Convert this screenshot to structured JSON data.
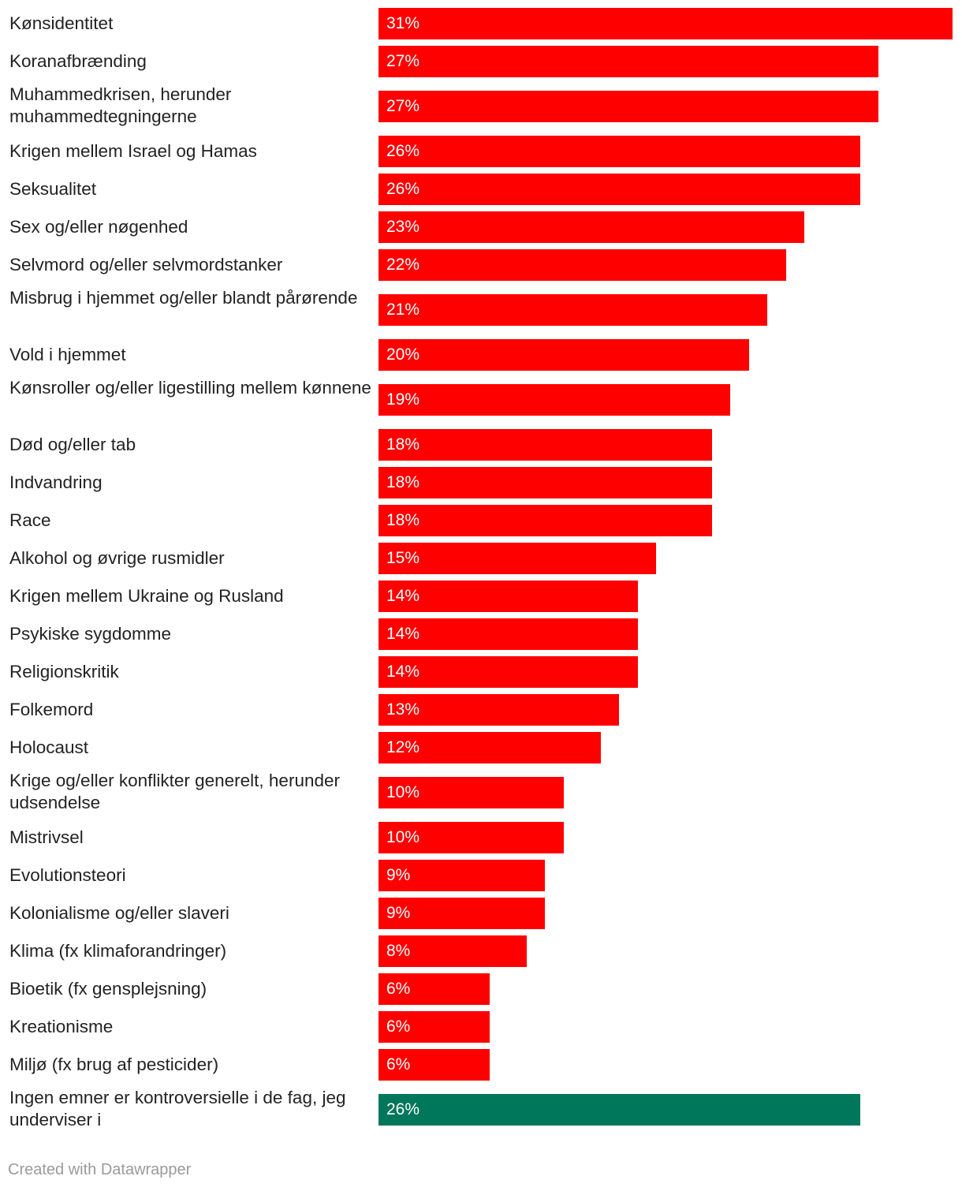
{
  "chart_data": {
    "type": "bar",
    "orientation": "horizontal",
    "categories": [
      "Kønsidentitet",
      "Koranafbrænding",
      "Muhammedkrisen, herunder muhammedtegningerne",
      "Krigen mellem Israel og Hamas",
      "Seksualitet",
      "Sex og/eller nøgenhed",
      "Selvmord og/eller selvmordstanker",
      "Misbrug i hjemmet og/eller blandt pårørende",
      "Vold i hjemmet",
      "Kønsroller og/eller ligestilling mellem kønnene",
      "Død og/eller tab",
      "Indvandring",
      "Race",
      "Alkohol og øvrige rusmidler",
      "Krigen mellem Ukraine og Rusland",
      "Psykiske sygdomme",
      "Religionskritik",
      "Folkemord",
      "Holocaust",
      "Krige og/eller konflikter generelt, herunder udsendelse",
      "Mistrivsel",
      "Evolutionsteori",
      "Kolonialisme og/eller slaveri",
      "Klima (fx klimaforandringer)",
      "Bioetik (fx gensplejsning)",
      "Kreationisme",
      "Miljø (fx brug af pesticider)",
      "Ingen emner er kontroversielle i de fag, jeg underviser i"
    ],
    "values": [
      31,
      27,
      27,
      26,
      26,
      23,
      22,
      21,
      20,
      19,
      18,
      18,
      18,
      15,
      14,
      14,
      14,
      13,
      12,
      10,
      10,
      9,
      9,
      8,
      6,
      6,
      6,
      26
    ],
    "value_labels": [
      "31%",
      "27%",
      "27%",
      "26%",
      "26%",
      "23%",
      "22%",
      "21%",
      "20%",
      "19%",
      "18%",
      "18%",
      "18%",
      "15%",
      "14%",
      "14%",
      "14%",
      "13%",
      "12%",
      "10%",
      "10%",
      "9%",
      "9%",
      "8%",
      "6%",
      "6%",
      "6%",
      "26%"
    ],
    "bar_colors": [
      "#ff0000",
      "#ff0000",
      "#ff0000",
      "#ff0000",
      "#ff0000",
      "#ff0000",
      "#ff0000",
      "#ff0000",
      "#ff0000",
      "#ff0000",
      "#ff0000",
      "#ff0000",
      "#ff0000",
      "#ff0000",
      "#ff0000",
      "#ff0000",
      "#ff0000",
      "#ff0000",
      "#ff0000",
      "#ff0000",
      "#ff0000",
      "#ff0000",
      "#ff0000",
      "#ff0000",
      "#ff0000",
      "#ff0000",
      "#ff0000",
      "#00765a"
    ],
    "unit": "%",
    "xlim": [
      0,
      31
    ],
    "grid": false,
    "legend": "none"
  },
  "footer": {
    "credit": "Created with Datawrapper"
  }
}
